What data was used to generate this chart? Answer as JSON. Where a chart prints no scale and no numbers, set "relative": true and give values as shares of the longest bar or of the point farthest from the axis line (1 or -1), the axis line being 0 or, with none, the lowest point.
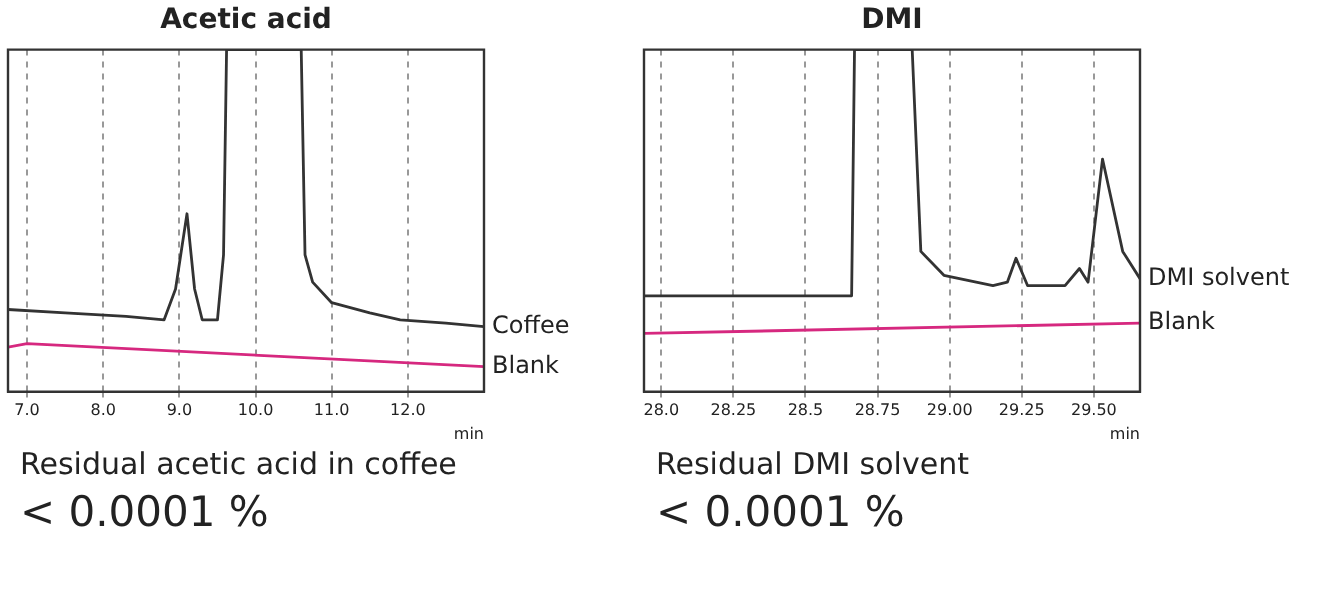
{
  "chart_data": [
    {
      "type": "line",
      "title": "Acetic acid",
      "xlabel": "min",
      "relative": true,
      "grid": "x",
      "marker": "none",
      "line_style": "solid",
      "xlim": [
        6.75,
        13.0
      ],
      "xticks": [
        {
          "value": 7,
          "label": "7.0"
        },
        {
          "value": 8,
          "label": "8.0"
        },
        {
          "value": 9,
          "label": "9.0"
        },
        {
          "value": 10,
          "label": "10.0"
        },
        {
          "value": 11,
          "label": "11.0"
        },
        {
          "value": 12,
          "label": "12.0"
        }
      ],
      "annotations": [
        "Residual acetic acid in coffee",
        "< 0.0001 %"
      ],
      "series": [
        {
          "name": "Coffee",
          "color": "#333333",
          "x": [
            6.75,
            7.5,
            8.3,
            8.8,
            8.95,
            9.1,
            9.2,
            9.3,
            9.5,
            9.58,
            9.62,
            10.6,
            10.65,
            10.75,
            11.0,
            11.5,
            11.9,
            12.5,
            13.0
          ],
          "values": [
            0.24,
            0.23,
            0.22,
            0.21,
            0.3,
            0.52,
            0.3,
            0.21,
            0.21,
            0.4,
            1,
            1,
            0.4,
            0.32,
            0.26,
            0.23,
            0.21,
            0.2,
            0.19
          ]
        },
        {
          "name": "Blank",
          "color": "#d6287f",
          "x": [
            6.75,
            7.0,
            13.0
          ],
          "values": [
            0.13,
            0.14,
            0.073
          ]
        }
      ]
    },
    {
      "type": "line",
      "title": "DMI",
      "xlabel": "min",
      "relative": true,
      "grid": "x",
      "marker": "none",
      "line_style": "solid",
      "xlim": [
        27.94,
        29.66
      ],
      "xticks": [
        {
          "value": 28,
          "label": "28.0"
        },
        28.25,
        28.5,
        28.75,
        {
          "value": 29,
          "label": "29.00"
        },
        29.25,
        {
          "value": 29.5,
          "label": "29.50"
        }
      ],
      "annotations": [
        "Residual DMI solvent",
        "< 0.0001 %"
      ],
      "series": [
        {
          "name": "DMI solvent",
          "color": "#333333",
          "x": [
            27.94,
            28.3,
            28.66,
            28.67,
            28.87,
            28.9,
            28.98,
            29.15,
            29.2,
            29.23,
            29.27,
            29.4,
            29.45,
            29.48,
            29.53,
            29.6,
            29.66
          ],
          "values": [
            0.28,
            0.28,
            0.28,
            1,
            1,
            0.41,
            0.34,
            0.31,
            0.32,
            0.39,
            0.31,
            0.31,
            0.36,
            0.32,
            0.68,
            0.41,
            0.33
          ]
        },
        {
          "name": "Blank",
          "color": "#d6287f",
          "x": [
            27.94,
            29.66
          ],
          "values": [
            0.17,
            0.2
          ]
        }
      ]
    }
  ]
}
